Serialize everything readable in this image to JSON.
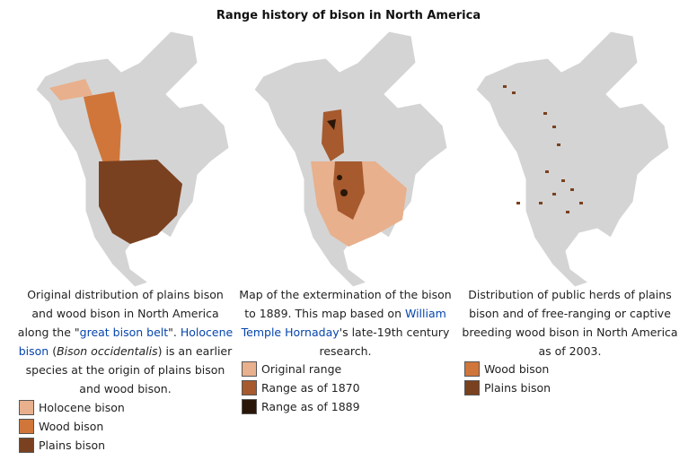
{
  "title": "Range history of bison in North America",
  "panels": [
    {
      "caption": [
        {
          "text": "Original distribution of plains bison and wood bison in North America along the \""
        },
        {
          "text": "great bison belt",
          "style": "link"
        },
        {
          "text": "\". "
        },
        {
          "text": "Holocene bison",
          "style": "link"
        },
        {
          "text": " ("
        },
        {
          "text": "Bison occidentalis",
          "style": "italic"
        },
        {
          "text": ") is an earlier species at the origin of plains bison and wood bison."
        }
      ],
      "legend": [
        {
          "label": "Holocene bison",
          "color": "#e8b08c"
        },
        {
          "label": "Wood bison",
          "color": "#d0763a"
        },
        {
          "label": "Plains bison",
          "color": "#7a4120"
        }
      ]
    },
    {
      "caption": [
        {
          "text": "Map of the extermination of the bison to 1889. This map based on "
        },
        {
          "text": "William Temple Hornaday",
          "style": "link"
        },
        {
          "text": "'s late-19th century research."
        }
      ],
      "legend": [
        {
          "label": "Original range",
          "color": "#e8b08c"
        },
        {
          "label": "Range as of 1870",
          "color": "#a65a2e"
        },
        {
          "label": "Range as of 1889",
          "color": "#2a1608"
        }
      ]
    },
    {
      "caption": [
        {
          "text": "Distribution of public herds of plains bison and of free-ranging or captive breeding wood bison in North America as of 2003."
        }
      ],
      "legend": [
        {
          "label": "Wood bison",
          "color": "#d0763a"
        },
        {
          "label": "Plains bison",
          "color": "#7a4120"
        }
      ]
    }
  ]
}
